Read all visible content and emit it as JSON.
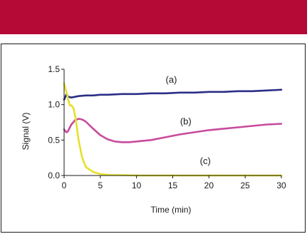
{
  "header": {
    "band_color": "#b40a35"
  },
  "chart_data": {
    "type": "line",
    "xlabel": "Time (min)",
    "ylabel": "Signal (V)",
    "xlim": [
      0,
      30
    ],
    "ylim": [
      0,
      1.5
    ],
    "x_ticks": [
      0,
      5,
      10,
      15,
      20,
      25,
      30
    ],
    "x_tick_labels": [
      "0",
      "5",
      "10",
      "15",
      "20",
      "25",
      "30"
    ],
    "y_ticks": [
      0.0,
      0.5,
      1.0,
      1.5
    ],
    "y_tick_labels": [
      "0.0",
      "0.5",
      "1.0",
      "1.5"
    ],
    "grid": false,
    "series": [
      {
        "name": "(a)",
        "color": "#2b2f86",
        "x": [
          0,
          0.3,
          0.6,
          1,
          1.5,
          2,
          3,
          4,
          5,
          6,
          8,
          10,
          12,
          14,
          16,
          18,
          20,
          22,
          24,
          26,
          28,
          30
        ],
        "y": [
          1.07,
          1.14,
          1.11,
          1.1,
          1.11,
          1.12,
          1.13,
          1.13,
          1.14,
          1.14,
          1.15,
          1.15,
          1.16,
          1.16,
          1.17,
          1.17,
          1.18,
          1.18,
          1.19,
          1.19,
          1.2,
          1.21
        ]
      },
      {
        "name": "(b)",
        "color": "#c84b9c",
        "x": [
          0,
          0.3,
          0.5,
          1,
          1.5,
          2,
          2.5,
          3,
          4,
          5,
          6,
          7,
          8,
          9,
          10,
          12,
          14,
          16,
          18,
          20,
          22,
          24,
          26,
          28,
          30
        ],
        "y": [
          0.65,
          0.61,
          0.62,
          0.72,
          0.78,
          0.8,
          0.79,
          0.76,
          0.66,
          0.57,
          0.51,
          0.48,
          0.47,
          0.47,
          0.48,
          0.5,
          0.54,
          0.58,
          0.61,
          0.64,
          0.66,
          0.68,
          0.7,
          0.72,
          0.73
        ]
      },
      {
        "name": "(c)",
        "color": "#e6e02a",
        "x": [
          0,
          0.2,
          0.4,
          0.6,
          0.8,
          1,
          1.3,
          1.6,
          2,
          2.5,
          3,
          4,
          5,
          6,
          8,
          10,
          15,
          20,
          25,
          30
        ],
        "y": [
          1.3,
          1.22,
          1.15,
          1.05,
          0.99,
          0.99,
          0.95,
          0.8,
          0.5,
          0.25,
          0.12,
          0.05,
          0.02,
          0.01,
          0.005,
          0.0,
          0.0,
          0.0,
          0.0,
          0.0
        ]
      }
    ],
    "curve_labels": [
      {
        "text": "(a)",
        "series": "(a)",
        "x": 14.8,
        "y": 1.31
      },
      {
        "text": "(b)",
        "series": "(b)",
        "x": 16.8,
        "y": 0.72
      },
      {
        "text": "(c)",
        "series": "(c)",
        "x": 19.5,
        "y": 0.16
      }
    ]
  }
}
